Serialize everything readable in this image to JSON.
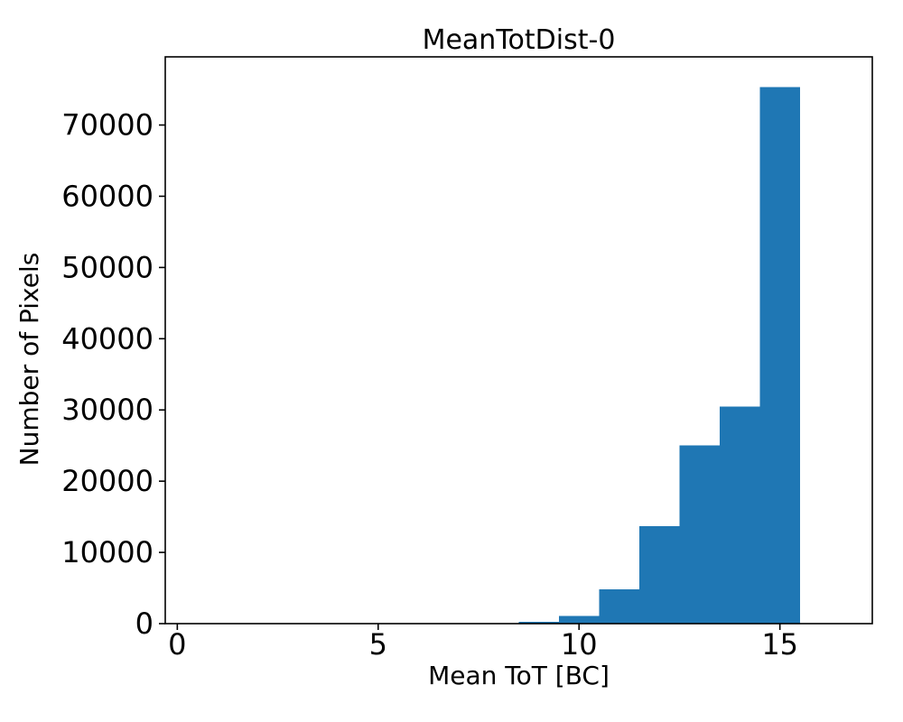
{
  "figure": {
    "background": "#ffffff"
  },
  "chart_data": {
    "type": "bar",
    "subtype": "histogram",
    "title": "MeanTotDist-0",
    "xlabel": "Mean ToT [BC]",
    "ylabel": "Number of Pixels",
    "bar_color": "#1f77b4",
    "axis_color": "#000000",
    "grid": false,
    "legend": null,
    "xlim": [
      -0.3,
      17.3
    ],
    "ylim": [
      0,
      79570
    ],
    "bin_edges": [
      0.5,
      1.5,
      2.5,
      3.5,
      4.5,
      5.5,
      6.5,
      7.5,
      8.5,
      9.5,
      10.5,
      11.5,
      12.5,
      13.5,
      14.5,
      15.5,
      16.5
    ],
    "counts": [
      0,
      0,
      0,
      0,
      0,
      0,
      0,
      0,
      280,
      1100,
      4800,
      13700,
      25000,
      30500,
      75300,
      0
    ],
    "xticks": {
      "values": [
        0,
        5,
        10,
        15
      ],
      "labels": [
        "0",
        "5",
        "10",
        "15"
      ]
    },
    "yticks": {
      "values": [
        0,
        10000,
        20000,
        30000,
        40000,
        50000,
        60000,
        70000
      ],
      "labels": [
        "0",
        "10000",
        "20000",
        "30000",
        "40000",
        "50000",
        "60000",
        "70000"
      ]
    }
  }
}
